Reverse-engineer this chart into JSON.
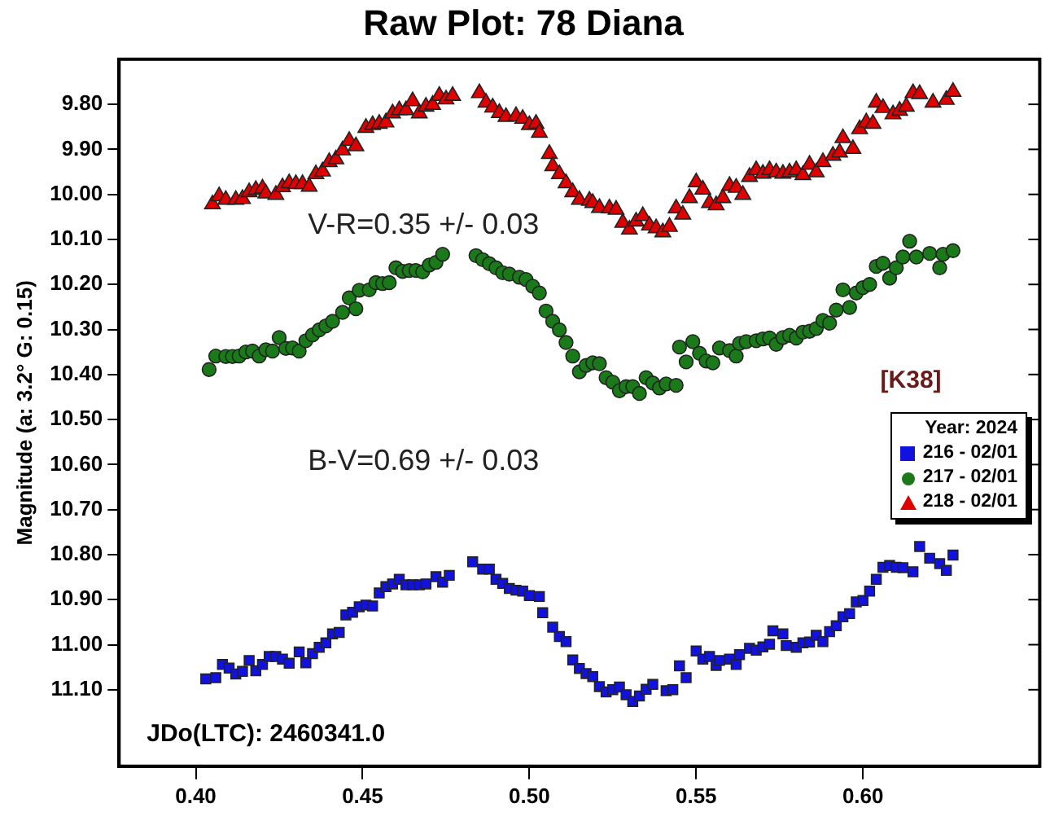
{
  "chart_data": {
    "type": "scatter",
    "title": "Raw Plot: 78 Diana",
    "ylabel": "Magnitude (a: 3.2° G: 0.15)",
    "legend_title": "Year: 2024",
    "legend": "right",
    "grid": false,
    "annotations": [
      "V-R=0.35 +/- 0.03",
      "B-V=0.69 +/- 0.03",
      "JDo(LTC): 2460341.0",
      "[K38]"
    ],
    "xlim": [
      0.377,
      0.653
    ],
    "xticks": [
      {
        "value": 0.4,
        "label": "0.40"
      },
      {
        "value": 0.45,
        "label": "0.45"
      },
      {
        "value": 0.5,
        "label": "0.50"
      },
      {
        "value": 0.55,
        "label": "0.55"
      },
      {
        "value": 0.6,
        "label": "0.60"
      }
    ],
    "ylim": [
      11.27,
      9.7
    ],
    "yticks": [
      {
        "value": 9.8,
        "label": "9.80"
      },
      {
        "value": 9.9,
        "label": "9.90"
      },
      {
        "value": 10.0,
        "label": "10.00"
      },
      {
        "value": 10.1,
        "label": "10.10"
      },
      {
        "value": 10.2,
        "label": "10.20"
      },
      {
        "value": 10.3,
        "label": "10.30"
      },
      {
        "value": 10.4,
        "label": "10.40"
      },
      {
        "value": 10.5,
        "label": "10.50"
      },
      {
        "value": 10.6,
        "label": "10.60"
      },
      {
        "value": 10.7,
        "label": "10.70"
      },
      {
        "value": 10.8,
        "label": "10.80"
      },
      {
        "value": 10.9,
        "label": "10.90"
      },
      {
        "value": 11.0,
        "label": "11.00"
      },
      {
        "value": 11.1,
        "label": "11.10"
      }
    ],
    "series": [
      {
        "name": "216 - 02/01",
        "color": "#1212e0",
        "marker": "square",
        "x": [
          0.403,
          0.406,
          0.408,
          0.41,
          0.412,
          0.414,
          0.416,
          0.418,
          0.42,
          0.422,
          0.424,
          0.426,
          0.428,
          0.431,
          0.433,
          0.435,
          0.437,
          0.439,
          0.441,
          0.443,
          0.445,
          0.447,
          0.449,
          0.451,
          0.453,
          0.455,
          0.457,
          0.459,
          0.461,
          0.463,
          0.465,
          0.467,
          0.469,
          0.472,
          0.474,
          0.476,
          0.483,
          0.486,
          0.488,
          0.49,
          0.492,
          0.494,
          0.496,
          0.498,
          0.5,
          0.503,
          0.504,
          0.507,
          0.509,
          0.511,
          0.513,
          0.515,
          0.517,
          0.519,
          0.521,
          0.523,
          0.525,
          0.527,
          0.529,
          0.531,
          0.533,
          0.535,
          0.537,
          0.541,
          0.543,
          0.545,
          0.547,
          0.55,
          0.552,
          0.554,
          0.556,
          0.557,
          0.56,
          0.562,
          0.563,
          0.566,
          0.568,
          0.57,
          0.572,
          0.573,
          0.576,
          0.577,
          0.58,
          0.582,
          0.584,
          0.586,
          0.588,
          0.59,
          0.592,
          0.594,
          0.596,
          0.598,
          0.6,
          0.602,
          0.604,
          0.606,
          0.608,
          0.61,
          0.612,
          0.615,
          0.617,
          0.62,
          0.623,
          0.625,
          0.627
        ],
        "values": [
          11.076,
          11.073,
          11.044,
          11.052,
          11.065,
          11.059,
          11.035,
          11.058,
          11.044,
          11.026,
          11.026,
          11.032,
          11.041,
          11.016,
          11.04,
          11.02,
          11.006,
          10.996,
          10.976,
          10.973,
          10.934,
          10.928,
          10.916,
          10.912,
          10.914,
          10.885,
          10.871,
          10.865,
          10.855,
          10.867,
          10.867,
          10.867,
          10.865,
          10.849,
          10.861,
          10.846,
          10.816,
          10.832,
          10.832,
          10.855,
          10.864,
          10.875,
          10.879,
          10.881,
          10.891,
          10.893,
          10.929,
          10.961,
          10.982,
          10.993,
          11.034,
          11.053,
          11.064,
          11.071,
          11.093,
          11.105,
          11.1,
          11.094,
          11.111,
          11.126,
          11.114,
          11.099,
          11.088,
          11.102,
          11.1,
          11.047,
          11.073,
          11.014,
          11.032,
          11.026,
          11.046,
          11.035,
          11.032,
          11.044,
          11.022,
          11.008,
          11.012,
          11.005,
          10.999,
          10.969,
          10.976,
          11.002,
          11.006,
          10.996,
          10.994,
          10.979,
          10.993,
          10.971,
          10.958,
          10.938,
          10.931,
          10.905,
          10.902,
          10.881,
          10.855,
          10.828,
          10.824,
          10.828,
          10.829,
          10.838,
          10.782,
          10.808,
          10.82,
          10.835,
          10.801
        ]
      },
      {
        "name": "217 - 02/01",
        "color": "#1a7a1a",
        "marker": "circle",
        "x": [
          0.404,
          0.406,
          0.409,
          0.411,
          0.413,
          0.415,
          0.417,
          0.419,
          0.421,
          0.423,
          0.425,
          0.427,
          0.429,
          0.431,
          0.433,
          0.435,
          0.437,
          0.439,
          0.441,
          0.444,
          0.446,
          0.448,
          0.449,
          0.452,
          0.454,
          0.456,
          0.458,
          0.46,
          0.462,
          0.464,
          0.466,
          0.468,
          0.47,
          0.472,
          0.474,
          0.484,
          0.486,
          0.488,
          0.49,
          0.492,
          0.494,
          0.497,
          0.499,
          0.501,
          0.503,
          0.505,
          0.507,
          0.509,
          0.511,
          0.513,
          0.515,
          0.517,
          0.519,
          0.521,
          0.523,
          0.525,
          0.527,
          0.529,
          0.531,
          0.533,
          0.535,
          0.537,
          0.539,
          0.541,
          0.544,
          0.545,
          0.547,
          0.549,
          0.551,
          0.553,
          0.555,
          0.557,
          0.56,
          0.562,
          0.563,
          0.565,
          0.568,
          0.57,
          0.572,
          0.574,
          0.576,
          0.578,
          0.58,
          0.582,
          0.584,
          0.586,
          0.588,
          0.59,
          0.592,
          0.594,
          0.596,
          0.598,
          0.6,
          0.602,
          0.604,
          0.606,
          0.608,
          0.61,
          0.612,
          0.614,
          0.616,
          0.62,
          0.623,
          0.624,
          0.627
        ],
        "values": [
          10.389,
          10.359,
          10.36,
          10.36,
          10.359,
          10.35,
          10.348,
          10.359,
          10.345,
          10.348,
          10.318,
          10.342,
          10.341,
          10.348,
          10.325,
          10.312,
          10.301,
          10.292,
          10.282,
          10.262,
          10.23,
          10.254,
          10.213,
          10.212,
          10.196,
          10.198,
          10.196,
          10.163,
          10.171,
          10.169,
          10.169,
          10.172,
          10.157,
          10.151,
          10.133,
          10.136,
          10.145,
          10.154,
          10.163,
          10.174,
          10.177,
          10.184,
          10.189,
          10.204,
          10.219,
          10.259,
          10.282,
          10.301,
          10.329,
          10.359,
          10.394,
          10.38,
          10.374,
          10.376,
          10.407,
          10.417,
          10.436,
          10.427,
          10.427,
          10.442,
          10.407,
          10.419,
          10.43,
          10.421,
          10.424,
          10.339,
          10.372,
          10.327,
          10.353,
          10.37,
          10.374,
          10.341,
          10.347,
          10.359,
          10.331,
          10.327,
          10.325,
          10.321,
          10.319,
          10.333,
          10.318,
          10.313,
          10.319,
          10.306,
          10.304,
          10.298,
          10.28,
          10.286,
          10.257,
          10.212,
          10.251,
          10.219,
          10.207,
          10.2,
          10.16,
          10.153,
          10.186,
          10.163,
          10.139,
          10.104,
          10.139,
          10.131,
          10.163,
          10.133,
          10.125
        ]
      },
      {
        "name": "218 - 02/01",
        "color": "#e00000",
        "marker": "triangle",
        "x": [
          0.405,
          0.407,
          0.409,
          0.412,
          0.414,
          0.416,
          0.418,
          0.42,
          0.421,
          0.424,
          0.426,
          0.428,
          0.43,
          0.432,
          0.434,
          0.436,
          0.438,
          0.44,
          0.442,
          0.444,
          0.446,
          0.448,
          0.451,
          0.453,
          0.455,
          0.457,
          0.459,
          0.461,
          0.463,
          0.465,
          0.467,
          0.469,
          0.471,
          0.473,
          0.475,
          0.477,
          0.485,
          0.487,
          0.489,
          0.491,
          0.493,
          0.496,
          0.498,
          0.5,
          0.502,
          0.503,
          0.506,
          0.507,
          0.509,
          0.511,
          0.513,
          0.515,
          0.518,
          0.519,
          0.521,
          0.524,
          0.526,
          0.528,
          0.53,
          0.532,
          0.534,
          0.536,
          0.538,
          0.54,
          0.542,
          0.544,
          0.546,
          0.548,
          0.55,
          0.552,
          0.554,
          0.556,
          0.558,
          0.56,
          0.562,
          0.564,
          0.566,
          0.568,
          0.57,
          0.572,
          0.574,
          0.576,
          0.578,
          0.58,
          0.582,
          0.584,
          0.586,
          0.588,
          0.591,
          0.593,
          0.594,
          0.597,
          0.599,
          0.601,
          0.603,
          0.604,
          0.606,
          0.609,
          0.611,
          0.613,
          0.615,
          0.617,
          0.621,
          0.625,
          0.627
        ],
        "values": [
          10.022,
          10.004,
          10.012,
          10.012,
          10.01,
          9.995,
          9.99,
          9.987,
          9.998,
          10.001,
          9.984,
          9.975,
          9.977,
          9.977,
          9.983,
          9.955,
          9.949,
          9.928,
          9.922,
          9.902,
          9.881,
          9.893,
          9.852,
          9.846,
          9.843,
          9.84,
          9.82,
          9.813,
          9.813,
          9.793,
          9.82,
          9.805,
          9.801,
          9.781,
          9.789,
          9.781,
          9.775,
          9.796,
          9.807,
          9.819,
          9.828,
          9.826,
          9.832,
          9.846,
          9.843,
          9.863,
          9.91,
          9.937,
          9.955,
          9.975,
          9.995,
          10.012,
          10.014,
          10.019,
          10.03,
          10.031,
          10.034,
          10.063,
          10.078,
          10.06,
          10.048,
          10.069,
          10.075,
          10.084,
          10.072,
          10.031,
          10.045,
          10.008,
          9.973,
          9.989,
          10.019,
          10.024,
          10.008,
          9.981,
          9.985,
          10.001,
          9.961,
          9.946,
          9.954,
          9.946,
          9.951,
          9.954,
          9.951,
          9.946,
          9.957,
          9.934,
          9.951,
          9.928,
          9.914,
          9.907,
          9.875,
          9.899,
          9.855,
          9.84,
          9.843,
          9.796,
          9.808,
          9.822,
          9.814,
          9.805,
          9.775,
          9.777,
          9.796,
          9.79,
          9.772
        ]
      }
    ]
  }
}
